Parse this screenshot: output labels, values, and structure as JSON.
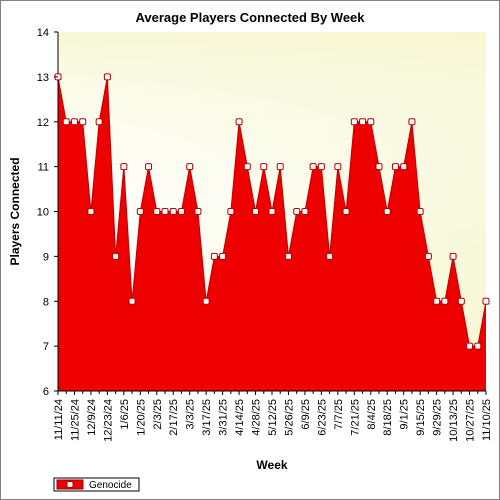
{
  "chart_data": {
    "type": "area",
    "title": "Average Players Connected By Week",
    "xlabel": "Week",
    "ylabel": "Players Connected",
    "ylim": [
      6,
      14
    ],
    "y_ticks": [
      6,
      7,
      8,
      9,
      10,
      11,
      12,
      13,
      14
    ],
    "x_tick_labels": [
      "11/11/24",
      "11/25/24",
      "12/9/24",
      "12/23/24",
      "1/6/25",
      "1/20/25",
      "2/3/25",
      "2/17/25",
      "3/3/25",
      "3/17/25",
      "3/31/25",
      "4/14/25",
      "4/28/25",
      "5/12/25",
      "5/26/25",
      "6/9/25",
      "6/23/25",
      "7/7/25",
      "7/21/25",
      "8/4/25",
      "8/18/25",
      "9/1/25",
      "9/15/25",
      "9/29/25",
      "10/13/25",
      "10/27/25",
      "11/10/25"
    ],
    "grid": false,
    "legend_position": "bottom-left",
    "background": "#fbfbe3",
    "series": [
      {
        "name": "Genocide",
        "color": "#ee0000",
        "values": [
          13,
          12,
          12,
          12,
          10,
          12,
          13,
          9,
          11,
          8,
          10,
          11,
          10,
          10,
          10,
          10,
          11,
          10,
          8,
          9,
          9,
          10,
          12,
          11,
          10,
          11,
          10,
          11,
          9,
          10,
          10,
          11,
          11,
          9,
          11,
          10,
          12,
          12,
          12,
          11,
          10,
          11,
          11,
          12,
          10,
          9,
          8,
          8,
          9,
          8,
          7,
          7,
          8
        ]
      }
    ]
  }
}
